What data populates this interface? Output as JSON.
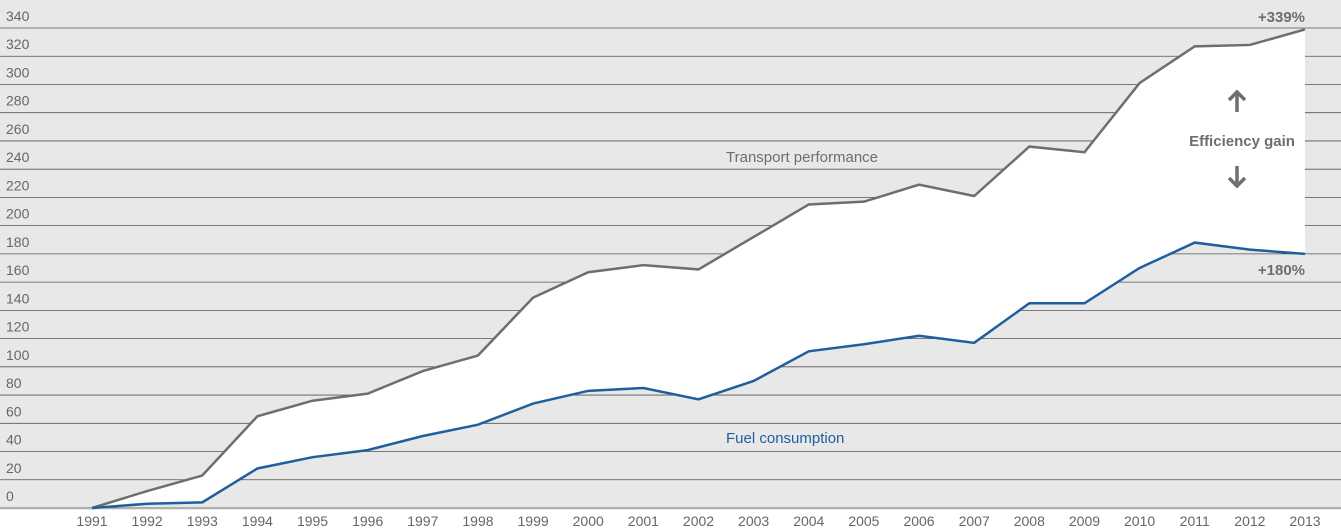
{
  "chart_data": {
    "type": "line",
    "x": [
      1991,
      1992,
      1993,
      1994,
      1995,
      1996,
      1997,
      1998,
      1999,
      2000,
      2001,
      2002,
      2003,
      2004,
      2005,
      2006,
      2007,
      2008,
      2009,
      2010,
      2011,
      2012,
      2013
    ],
    "series": [
      {
        "name": "Transport performance",
        "color": "#6e6e6e",
        "values": [
          0,
          12,
          23,
          65,
          76,
          81,
          97,
          108,
          149,
          167,
          172,
          169,
          192,
          215,
          217,
          229,
          221,
          256,
          252,
          301,
          327,
          328,
          339
        ]
      },
      {
        "name": "Fuel consumption",
        "color": "#1f5fa0",
        "values": [
          0,
          3,
          4,
          28,
          36,
          41,
          51,
          59,
          74,
          83,
          85,
          77,
          90,
          111,
          116,
          122,
          117,
          145,
          145,
          170,
          188,
          183,
          180
        ]
      }
    ],
    "annotations": [
      "+339%",
      "+180%",
      "Efficiency gain"
    ],
    "xlim": [
      1991,
      2013
    ],
    "ylim": [
      0,
      340
    ],
    "yticks": [
      0,
      20,
      40,
      60,
      80,
      100,
      120,
      140,
      160,
      180,
      200,
      220,
      240,
      260,
      280,
      300,
      320,
      340
    ],
    "grid": true
  }
}
